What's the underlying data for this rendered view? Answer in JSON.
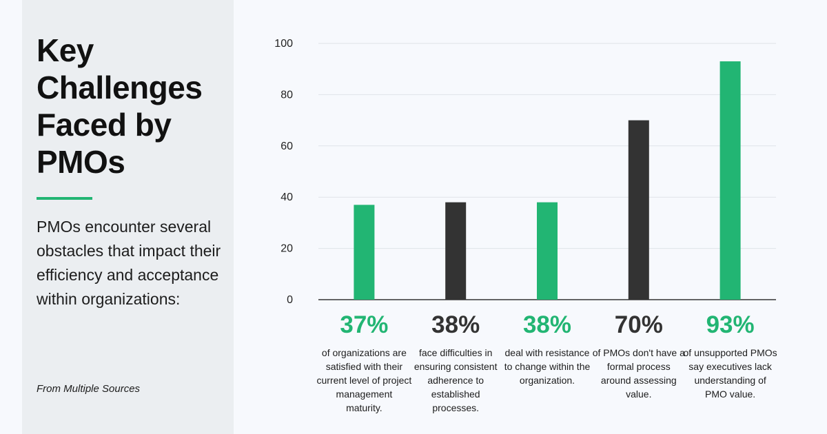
{
  "panel": {
    "title": "Key Challenges Faced by PMOs",
    "description": "PMOs encounter several obstacles that impact their efficiency and acceptance within organizations:",
    "source": "From Multiple Sources"
  },
  "colors": {
    "green": "#22b573",
    "dark": "#333333",
    "accent": "#22b573"
  },
  "chart_data": {
    "type": "bar",
    "title": "",
    "xlabel": "",
    "ylabel": "",
    "ylim": [
      0,
      100
    ],
    "yticks": [
      0,
      20,
      40,
      60,
      80,
      100
    ],
    "grid": true,
    "values": [
      37,
      38,
      38,
      70,
      93
    ],
    "bar_colors": [
      "green",
      "dark",
      "green",
      "dark",
      "green"
    ],
    "stats": [
      {
        "value_label": "37%",
        "caption": "of organizations are satisfied with their current level of project management maturity."
      },
      {
        "value_label": "38%",
        "caption": "face difficulties in ensuring consistent adherence to established processes."
      },
      {
        "value_label": "38%",
        "caption": "deal with resistance to change within the organization."
      },
      {
        "value_label": "70%",
        "caption": "of PMOs don't have a formal process around assessing value."
      },
      {
        "value_label": "93%",
        "caption": "of unsupported PMOs say executives lack understanding of PMO value."
      }
    ]
  }
}
